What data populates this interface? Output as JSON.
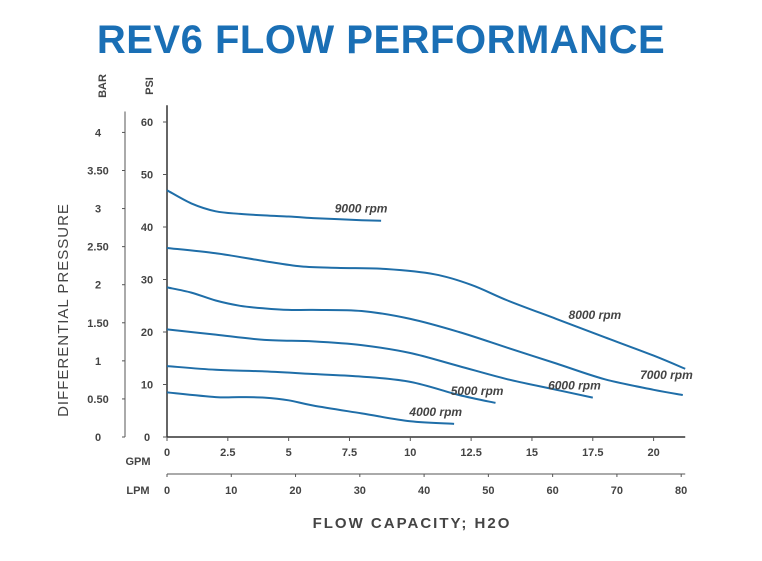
{
  "title": "REV6 FLOW PERFORMANCE",
  "chart_data": {
    "type": "line",
    "title": "REV6 FLOW PERFORMANCE",
    "ylabel": "DIFFERENTIAL PRESSURE",
    "xlabel": "FLOW CAPACITY; H2O",
    "y_units": {
      "bar": "BAR",
      "psi": "PSI"
    },
    "x_units": {
      "gpm": "GPM",
      "lpm": "LPM"
    },
    "psi_ticks": [
      "60",
      "50",
      "40",
      "30",
      "20",
      "10",
      "0"
    ],
    "psi_values": [
      60,
      50,
      40,
      30,
      20,
      10,
      0
    ],
    "bar_ticks": [
      "4",
      "3.50",
      "3",
      "2.50",
      "2",
      "1.50",
      "1",
      "0.50",
      "0"
    ],
    "bar_values": [
      4,
      3.5,
      3,
      2.5,
      2,
      1.5,
      1,
      0.5,
      0
    ],
    "gpm_ticks": [
      "0",
      "2.5",
      "5",
      "7.5",
      "10",
      "12.5",
      "15",
      "17.5",
      "20"
    ],
    "gpm_values": [
      0,
      2.5,
      5,
      7.5,
      10,
      12.5,
      15,
      17.5,
      20
    ],
    "lpm_ticks": [
      "0",
      "10",
      "20",
      "30",
      "40",
      "50",
      "60",
      "70",
      "80"
    ],
    "lpm_values": [
      0,
      10,
      20,
      30,
      40,
      50,
      60,
      70,
      80
    ],
    "xlim_gpm": [
      0,
      21.3
    ],
    "ylim_psi": [
      0,
      62
    ],
    "grid": false,
    "series": [
      {
        "name": "9000 rpm",
        "x": [
          0,
          1,
          2,
          3,
          4,
          5,
          6,
          7,
          8,
          8.8
        ],
        "y": [
          47,
          44.5,
          43,
          42.5,
          42.2,
          42,
          41.7,
          41.5,
          41.3,
          41.2
        ]
      },
      {
        "name": "8000 rpm",
        "x": [
          0,
          2,
          4,
          5.5,
          7,
          9,
          11,
          12.5,
          14,
          16,
          18,
          20,
          21.3
        ],
        "y": [
          36,
          35,
          33.5,
          32.5,
          32.2,
          32,
          31,
          29,
          26,
          22.5,
          19,
          15.5,
          13
        ]
      },
      {
        "name": "7000 rpm",
        "x": [
          0,
          1,
          2,
          3,
          4,
          5,
          6,
          8,
          10,
          12,
          14,
          16,
          18,
          20,
          21.2
        ],
        "y": [
          28.5,
          27.5,
          26,
          25,
          24.5,
          24.2,
          24.2,
          24,
          22.5,
          20,
          17,
          14,
          11,
          9,
          8
        ]
      },
      {
        "name": "6000 rpm",
        "x": [
          0,
          2,
          4,
          6,
          8,
          10,
          12,
          14,
          16,
          17.5
        ],
        "y": [
          20.5,
          19.5,
          18.5,
          18.2,
          17.5,
          16,
          13.5,
          11,
          9,
          7.5
        ]
      },
      {
        "name": "5000 rpm",
        "x": [
          0,
          2,
          4,
          6,
          8,
          10,
          12,
          13.5
        ],
        "y": [
          13.5,
          12.8,
          12.5,
          12,
          11.5,
          10.5,
          8,
          6.5
        ]
      },
      {
        "name": "4000 rpm",
        "x": [
          0,
          2,
          3,
          4,
          5,
          6,
          8,
          10,
          11.8
        ],
        "y": [
          8.5,
          7.6,
          7.6,
          7.5,
          7,
          6,
          4.5,
          3,
          2.5
        ]
      }
    ]
  }
}
